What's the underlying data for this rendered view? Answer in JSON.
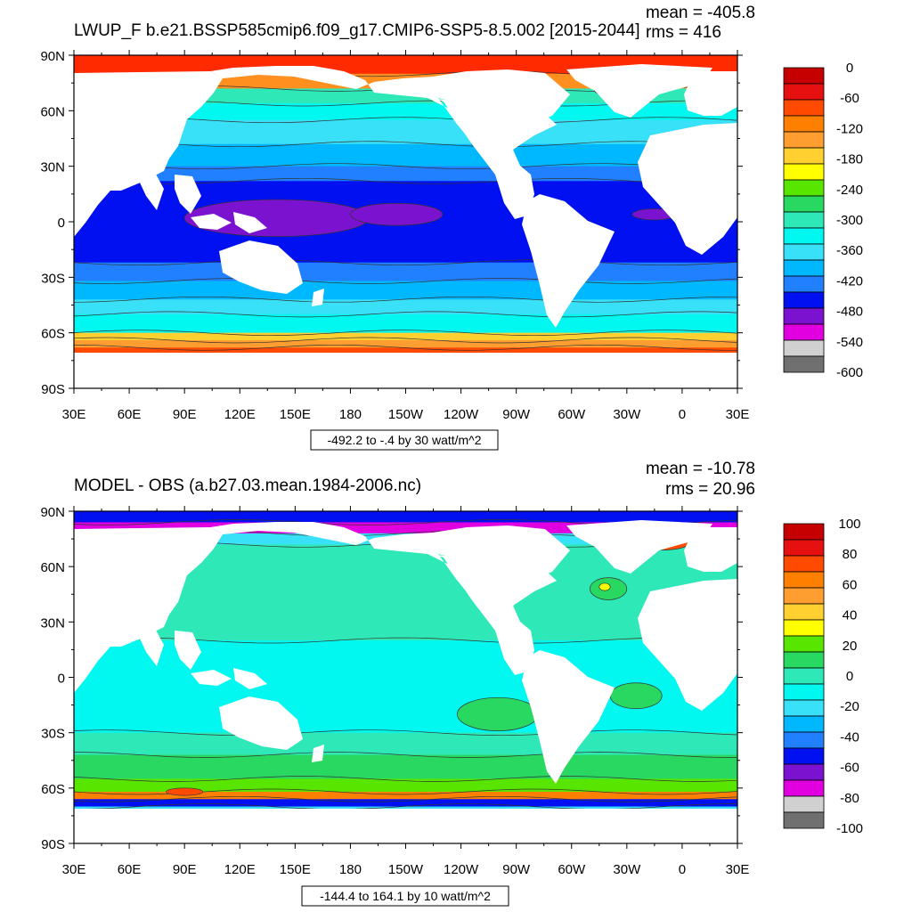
{
  "colors": {
    "land": "#ffffff",
    "frame": "#000000",
    "contour": "#333333"
  },
  "panels": [
    {
      "id": "top",
      "title": "LWUP_F b.e21.BSSP585cmip6.f09_g17.CMIP6-SSP5-8.5.002 [2015-2044]",
      "stat_mean": "mean = -405.8",
      "stat_rms": "rms = 416",
      "range_label": "-492.2 to -.4 by 30 watt/m^2",
      "lat_labels": [
        "90N",
        "60N",
        "30N",
        "0",
        "30S",
        "60S",
        "90S"
      ],
      "lon_labels": [
        "30E",
        "60E",
        "90E",
        "120E",
        "150E",
        "180",
        "150W",
        "120W",
        "90W",
        "60W",
        "30W",
        "0",
        "30E"
      ],
      "colorbar_labels": [
        "0",
        "-60",
        "-120",
        "-180",
        "-240",
        "-300",
        "-360",
        "-420",
        "-480",
        "-540",
        "-600"
      ],
      "colorbar_colors": [
        "#c60000",
        "#e61010",
        "#ff4a00",
        "#ff8000",
        "#ff9e30",
        "#ffd030",
        "#ffff00",
        "#58e600",
        "#28d860",
        "#2ee8b8",
        "#00f8f0",
        "#38e0f8",
        "#00b8ff",
        "#2080ff",
        "#0010f0",
        "#7a12d0",
        "#e000e0",
        "#d0d0d0",
        "#707070"
      ],
      "ocean_bands": [
        {
          "lat_n": 90,
          "lat_s": 80,
          "color": "#ff2a00"
        },
        {
          "lat_n": 80,
          "lat_s": 72,
          "color": "#ff9020"
        },
        {
          "lat_n": 72,
          "lat_s": 64,
          "color": "#2ee8b8"
        },
        {
          "lat_n": 64,
          "lat_s": 55,
          "color": "#00f8f0"
        },
        {
          "lat_n": 55,
          "lat_s": 42,
          "color": "#38e0f8"
        },
        {
          "lat_n": 42,
          "lat_s": 30,
          "color": "#00b8ff"
        },
        {
          "lat_n": 30,
          "lat_s": 22,
          "color": "#2080ff"
        },
        {
          "lat_n": 22,
          "lat_s": -22,
          "color": "#0010f0"
        },
        {
          "lat_n": -22,
          "lat_s": -32,
          "color": "#2080ff"
        },
        {
          "lat_n": -32,
          "lat_s": -42,
          "color": "#00b8ff"
        },
        {
          "lat_n": -42,
          "lat_s": -50,
          "color": "#38e0f8"
        },
        {
          "lat_n": -50,
          "lat_s": -60,
          "color": "#00f8f0"
        },
        {
          "lat_n": -60,
          "lat_s": -64,
          "color": "#ffd030"
        },
        {
          "lat_n": -64,
          "lat_s": -68,
          "color": "#ff9e30"
        },
        {
          "lat_n": -68,
          "lat_s": -72,
          "color": "#ff4a00"
        }
      ],
      "warm_pools": [
        {
          "lon": 140,
          "lat": 2,
          "rx": 50,
          "ry": 10,
          "color": "#7a12d0"
        },
        {
          "lon": 205,
          "lat": 4,
          "rx": 25,
          "ry": 6,
          "color": "#7a12d0"
        },
        {
          "lon": 345,
          "lat": 4,
          "rx": 12,
          "ry": 3,
          "color": "#7a12d0"
        },
        {
          "lon": 320,
          "lat": 72,
          "rx": 8,
          "ry": 4,
          "color": "#ffd030"
        }
      ]
    },
    {
      "id": "bottom",
      "title": "MODEL - OBS (a.b27.03.mean.1984-2006.nc)",
      "stat_mean": "mean = -10.78",
      "stat_rms": "rms = 20.96",
      "range_label": "-144.4 to 164.1 by 10 watt/m^2",
      "lat_labels": [
        "90N",
        "60N",
        "30N",
        "0",
        "30S",
        "60S",
        "90S"
      ],
      "lon_labels": [
        "30E",
        "60E",
        "90E",
        "120E",
        "150E",
        "180",
        "150W",
        "120W",
        "90W",
        "60W",
        "30W",
        "0",
        "30E"
      ],
      "colorbar_labels": [
        "100",
        "80",
        "60",
        "40",
        "20",
        "0",
        "-20",
        "-40",
        "-60",
        "-80",
        "-100"
      ],
      "colorbar_colors": [
        "#c60000",
        "#e61010",
        "#ff4a00",
        "#ff8000",
        "#ff9e30",
        "#ffd030",
        "#ffff00",
        "#58e600",
        "#28d860",
        "#2ee8b8",
        "#00f8f0",
        "#38e0f8",
        "#00b8ff",
        "#2080ff",
        "#0010f0",
        "#7a12d0",
        "#e000e0",
        "#d0d0d0",
        "#707070"
      ],
      "ocean_bands": [
        {
          "lat_n": 90,
          "lat_s": 84,
          "color": "#0010f0"
        },
        {
          "lat_n": 84,
          "lat_s": 78,
          "color": "#e000e0"
        },
        {
          "lat_n": 78,
          "lat_s": 72,
          "color": "#38e0f8"
        },
        {
          "lat_n": 72,
          "lat_s": 20,
          "color": "#2ee8b8"
        },
        {
          "lat_n": 20,
          "lat_s": -30,
          "color": "#00f8f0"
        },
        {
          "lat_n": -30,
          "lat_s": -42,
          "color": "#2ee8b8"
        },
        {
          "lat_n": -42,
          "lat_s": -55,
          "color": "#28d860"
        },
        {
          "lat_n": -55,
          "lat_s": -62,
          "color": "#58e600"
        },
        {
          "lat_n": -62,
          "lat_s": -66,
          "color": "#ff8000"
        },
        {
          "lat_n": -66,
          "lat_s": -70,
          "color": "#0010f0"
        },
        {
          "lat_n": -70,
          "lat_s": -75,
          "color": "#38e0f8"
        }
      ],
      "warm_pools": [
        {
          "lon": 260,
          "lat": -20,
          "rx": 22,
          "ry": 9,
          "color": "#28d860"
        },
        {
          "lon": 335,
          "lat": -10,
          "rx": 14,
          "ry": 7,
          "color": "#28d860"
        },
        {
          "lon": 320,
          "lat": 48,
          "rx": 10,
          "ry": 6,
          "color": "#28d860"
        },
        {
          "lon": 318,
          "lat": 49,
          "rx": 3,
          "ry": 2,
          "color": "#ffff00"
        },
        {
          "lon": 350,
          "lat": 73,
          "rx": 14,
          "ry": 4,
          "color": "#ff4a00"
        },
        {
          "lon": 90,
          "lat": -62,
          "rx": 10,
          "ry": 2,
          "color": "#ff4a00"
        }
      ]
    }
  ]
}
